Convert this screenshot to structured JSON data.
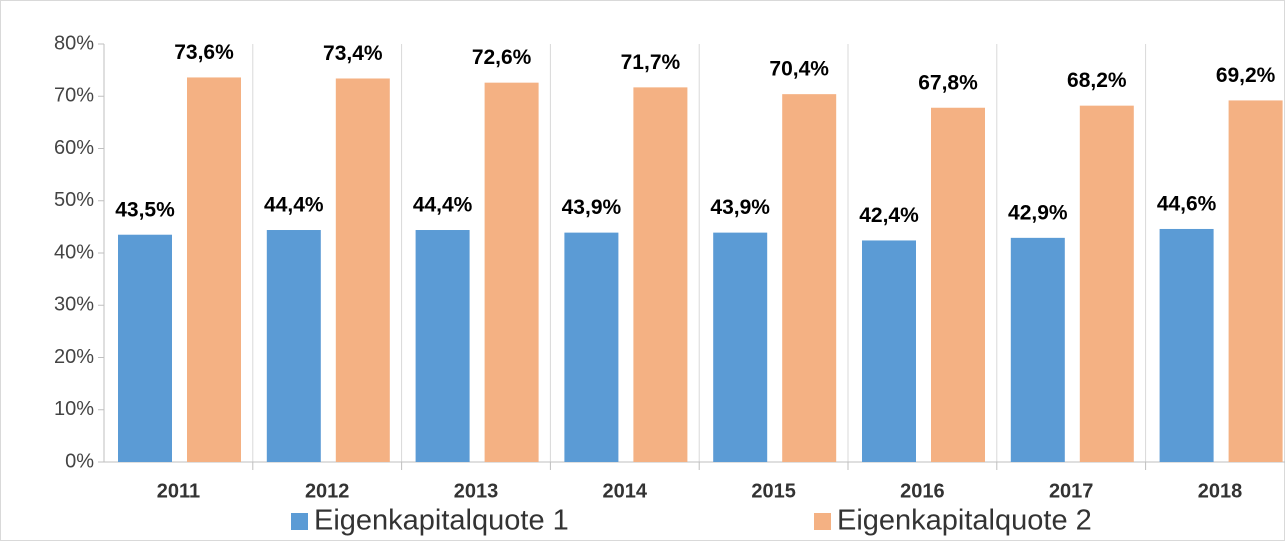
{
  "chart_data": {
    "type": "bar",
    "categories": [
      "2011",
      "2012",
      "2013",
      "2014",
      "2015",
      "2016",
      "2017",
      "2018"
    ],
    "series": [
      {
        "name": "Eigenkapitalquote 1",
        "color": "#5b9bd5",
        "values": [
          43.5,
          44.4,
          44.4,
          43.9,
          43.9,
          42.4,
          42.9,
          44.6
        ],
        "value_labels": [
          "43,5%",
          "44,4%",
          "44,4%",
          "43,9%",
          "43,9%",
          "42,4%",
          "42,9%",
          "44,6%"
        ]
      },
      {
        "name": "Eigenkapitalquote 2",
        "color": "#f4b183",
        "values": [
          73.6,
          73.4,
          72.6,
          71.7,
          70.4,
          67.8,
          68.2,
          69.2
        ],
        "value_labels": [
          "73,6%",
          "73,4%",
          "72,6%",
          "71,7%",
          "70,4%",
          "67,8%",
          "68,2%",
          "69,2%"
        ]
      }
    ],
    "ylim": [
      0,
      80
    ],
    "yticks": [
      {
        "value": 0,
        "label": "0%"
      },
      {
        "value": 10,
        "label": "10%"
      },
      {
        "value": 20,
        "label": "20%"
      },
      {
        "value": 30,
        "label": "30%"
      },
      {
        "value": 40,
        "label": "40%"
      },
      {
        "value": 50,
        "label": "50%"
      },
      {
        "value": 60,
        "label": "60%"
      },
      {
        "value": 70,
        "label": "70%"
      },
      {
        "value": 80,
        "label": "80%"
      }
    ],
    "legend": "bottom"
  }
}
